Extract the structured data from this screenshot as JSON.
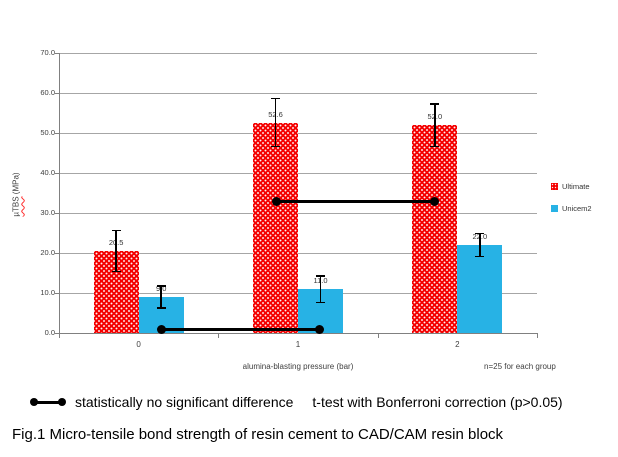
{
  "chart_data": {
    "type": "bar",
    "title": "",
    "categories": [
      "0",
      "1",
      "2"
    ],
    "series": [
      {
        "name": "Ultimate",
        "color": "#f40000",
        "fill_pattern": "white-dots",
        "values": [
          20.5,
          52.6,
          52.0
        ],
        "labels": [
          "20.5",
          "52.6",
          "52.0"
        ],
        "error": [
          5.3,
          6.2,
          5.5
        ]
      },
      {
        "name": "Unicem2",
        "color": "#27b2e5",
        "fill_pattern": "solid",
        "values": [
          9.0,
          11.0,
          22.0
        ],
        "labels": [
          "9.0",
          "11.0",
          "22.0"
        ],
        "error": [
          2.9,
          3.5,
          3.1
        ]
      }
    ],
    "xlabel": "alumina-blasting pressure (bar)",
    "ylabel": "µTBS (MPa)",
    "ylabel_main": "µTBS",
    "ylabel_units": " (MPa)",
    "ylim": [
      0,
      70
    ],
    "ytick_step": 10,
    "yticks": [
      "70.0",
      "60.0",
      "50.0",
      "40.0",
      "30.0",
      "20.0",
      "10.0",
      "0.0"
    ],
    "grid": true,
    "legend_position": "right",
    "note": "n=25 for each group",
    "significance_lines": [
      {
        "series": "Unicem2",
        "from_group": 0,
        "to_group": 1,
        "value": 1.0
      },
      {
        "series": "Ultimate",
        "from_group": 1,
        "to_group": 2,
        "value": 33.0
      }
    ]
  },
  "annotation": {
    "symbol": "dot-line-dot",
    "significance_text": "statistically no significant difference",
    "ttest_text": "t-test with Bonferroni correction (p>0.05)"
  },
  "caption": "Fig.1 Micro-tensile bond strength of resin cement to CAD/CAM resin block"
}
